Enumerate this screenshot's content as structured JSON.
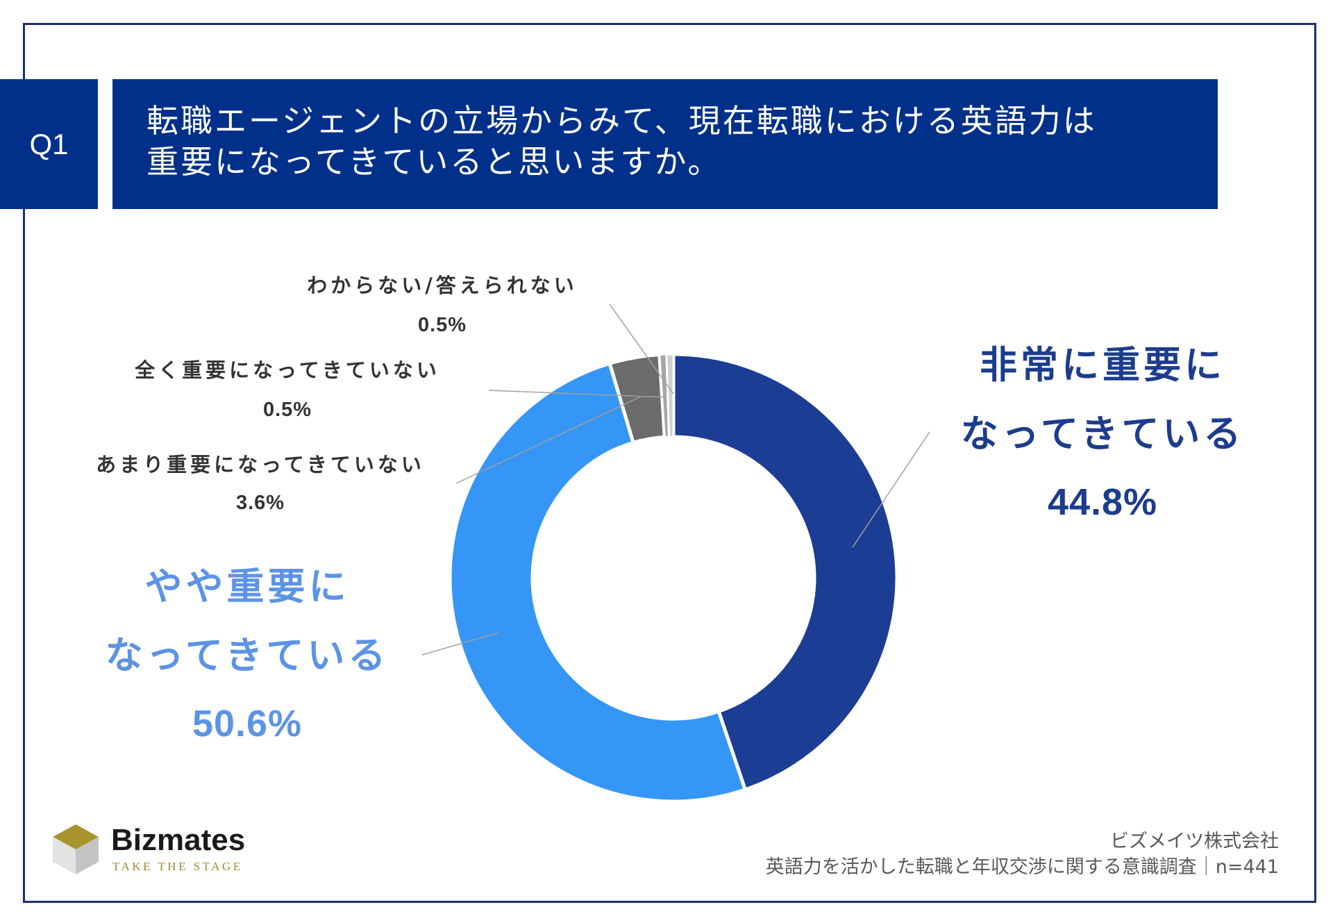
{
  "question": {
    "badge": "Q1",
    "title_lines": [
      "転職エージェントの立場からみて、現在転職における英語力は",
      "重要になってきていると思いますか。"
    ]
  },
  "chart_data": {
    "type": "pie",
    "donut": true,
    "start": "top",
    "direction": "clockwise",
    "unit": "%",
    "categories": [
      "非常に重要に\nなってきている",
      "やや重要に\nなってきている",
      "あまり重要になってきていない",
      "全く重要になってきていない",
      "わからない/答えられない"
    ],
    "values": [
      44.8,
      50.6,
      3.6,
      0.5,
      0.5
    ],
    "colors": [
      "#1b3d94",
      "#3596f6",
      "#6b6b6b",
      "#a6a6a6",
      "#d0d0d0"
    ],
    "label_colors": [
      "#1c3c8e",
      "#5c93e6",
      "#333333",
      "#333333",
      "#333333"
    ]
  },
  "brand": {
    "name": "Bizmates",
    "tagline": "TAKE THE STAGE",
    "logo_icon": "cube-logo-icon",
    "logo_colors": {
      "top": "#a8942c",
      "left": "#e3e3e3",
      "right": "#c4c4c4"
    }
  },
  "source": {
    "company": "ビズメイツ株式会社",
    "survey": "英語力を活かした転職と年収交渉に関する意識調査｜n=441"
  },
  "theme": {
    "navy": "#00308a",
    "frame": "#1f2f6a",
    "leader_line": "#a0a0a0"
  }
}
